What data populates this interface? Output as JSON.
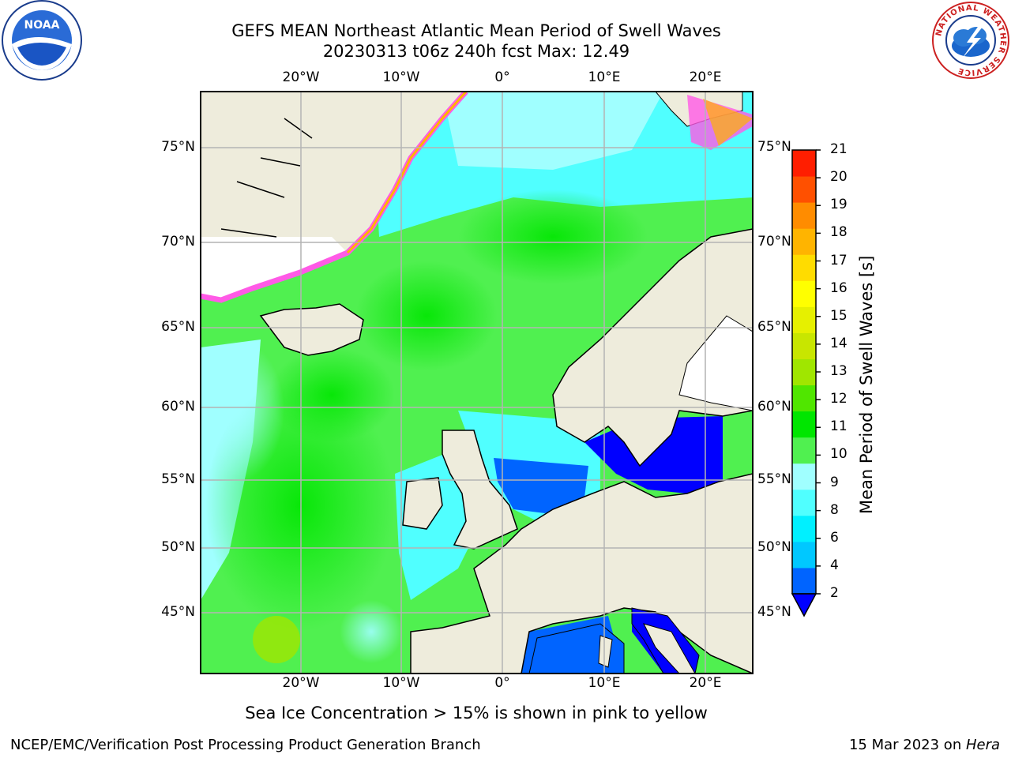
{
  "titles": {
    "line1": "GEFS MEAN Northeast Atlantic Mean Period of Swell Waves",
    "line2": "20230313 t06z 240h fcst   Max: 12.49"
  },
  "logos": {
    "left": "NOAA",
    "right": "NATIONAL WEATHER SERVICE"
  },
  "map": {
    "lon_labels": [
      "20°W",
      "10°W",
      "0°",
      "10°E",
      "20°E"
    ],
    "lat_labels": [
      "75°N",
      "70°N",
      "65°N",
      "60°N",
      "55°N",
      "50°N",
      "45°N"
    ],
    "lon_range": [
      -30,
      25
    ],
    "lat_range": [
      41,
      78
    ],
    "projection": "polar stereographic",
    "colors": {
      "land": "#eeecdc",
      "ice": "#ffffff",
      "grid": "#b4b4b4"
    }
  },
  "colorbar": {
    "label": "Mean Period of Swell Waves [s]",
    "ticks": [
      "2",
      "4",
      "6",
      "8",
      "9",
      "10",
      "11",
      "12",
      "13",
      "14",
      "15",
      "16",
      "17",
      "18",
      "19",
      "20",
      "21"
    ],
    "colors": [
      "#0064ff",
      "#00c8ff",
      "#00f0ff",
      "#50ffff",
      "#a0ffff",
      "#50f050",
      "#00e600",
      "#50e600",
      "#a0e600",
      "#c8e600",
      "#e6f000",
      "#ffff00",
      "#ffdc00",
      "#ffb400",
      "#ff8c00",
      "#ff5000",
      "#ff1e00"
    ],
    "under_color": "#0000ff"
  },
  "subtitle": "Sea Ice Concentration > 15% is shown in pink to yellow",
  "footer": {
    "left": "NCEP/EMC/Verification Post Processing Product Generation Branch",
    "right_date": "15 Mar 2023 on ",
    "right_host": "Hera"
  }
}
